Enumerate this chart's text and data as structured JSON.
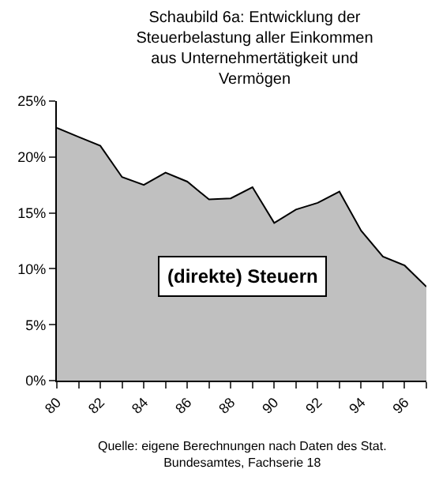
{
  "chart_data": {
    "type": "area",
    "title": "Schaubild 6a: Entwicklung der\nSteuerbelastung aller Einkommen\naus Unternehmertätigkeit und\nVermögen",
    "x": [
      80,
      81,
      82,
      83,
      84,
      85,
      86,
      87,
      88,
      89,
      90,
      91,
      92,
      93,
      94,
      95,
      96,
      97
    ],
    "series": [
      {
        "color": "#c0c0c0",
        "values": [
          22.6,
          21.8,
          21.0,
          18.2,
          17.5,
          18.6,
          17.8,
          16.2,
          16.3,
          17.3,
          14.1,
          15.3,
          15.9,
          16.9,
          13.4,
          11.1,
          10.3,
          8.4
        ]
      }
    ],
    "xlim": [
      80,
      97
    ],
    "xticks": [
      80,
      {
        "value": 81,
        "label": null
      },
      82,
      {
        "value": 83,
        "label": null
      },
      84,
      {
        "value": 85,
        "label": null
      },
      86,
      {
        "value": 87,
        "label": null
      },
      88,
      {
        "value": 89,
        "label": null
      },
      90,
      {
        "value": 91,
        "label": null
      },
      92,
      {
        "value": 93,
        "label": null
      },
      94,
      {
        "value": 95,
        "label": null
      },
      96,
      {
        "value": 97,
        "label": null
      }
    ],
    "ylim": [
      0,
      25
    ],
    "yticks": [
      {
        "value": 0,
        "label": "0%"
      },
      {
        "value": 5,
        "label": "5%"
      },
      {
        "value": 10,
        "label": "10%"
      },
      {
        "value": 15,
        "label": "15%"
      },
      {
        "value": 20,
        "label": "20%"
      },
      {
        "value": 25,
        "label": "25%"
      }
    ],
    "annotations": [
      "(direkte) Steuern",
      "Quelle: eigene Berechnungen nach Daten des Stat.\nBundesamtes, Fachserie 18"
    ],
    "legend": false
  }
}
